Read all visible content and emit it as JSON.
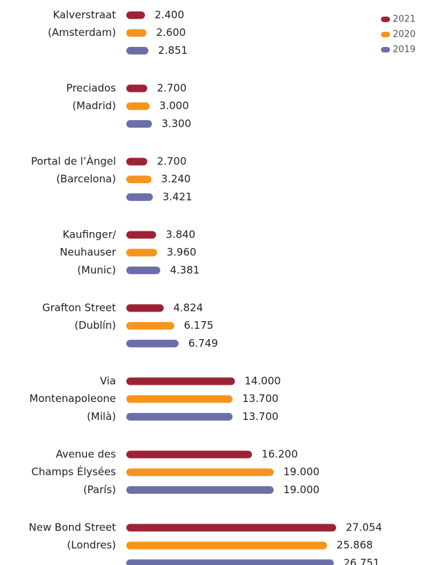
{
  "chart_data": {
    "type": "bar",
    "orientation": "horizontal",
    "categories": [
      [
        "Kalverstraat",
        "(Amsterdam)"
      ],
      [
        "Preciados",
        "(Madrid)"
      ],
      [
        "Portal de l’Àngel",
        "(Barcelona)"
      ],
      [
        "Kaufinger/",
        "Neuhauser",
        "(Munic)"
      ],
      [
        "Grafton Street",
        "(Dublín)"
      ],
      [
        "Via",
        "Montenapoleone",
        "(Milà)"
      ],
      [
        "Avenue des",
        "Champs Élysées",
        "(París)"
      ],
      [
        "New Bond Street",
        "(Londres)"
      ]
    ],
    "series": [
      {
        "name": "2021",
        "color": "#9e2235",
        "values": [
          2400,
          2700,
          2700,
          3840,
          4824,
          14000,
          16200,
          27054
        ],
        "value_labels": [
          "2.400",
          "2.700",
          "2.700",
          "3.840",
          "4.824",
          "14.000",
          "16.200",
          "27.054"
        ]
      },
      {
        "name": "2020",
        "color": "#f7941d",
        "values": [
          2600,
          3000,
          3240,
          3960,
          6175,
          13700,
          19000,
          25868
        ],
        "value_labels": [
          "2.600",
          "3.000",
          "3.240",
          "3.960",
          "6.175",
          "13.700",
          "19.000",
          "25.868"
        ]
      },
      {
        "name": "2019",
        "color": "#6b6fa8",
        "values": [
          2851,
          3300,
          3421,
          4381,
          6749,
          13700,
          19000,
          26751
        ],
        "value_labels": [
          "2.851",
          "3.300",
          "3.421",
          "4.381",
          "6.749",
          "13.700",
          "19.000",
          "26.751"
        ]
      }
    ],
    "legend": "top-right"
  }
}
